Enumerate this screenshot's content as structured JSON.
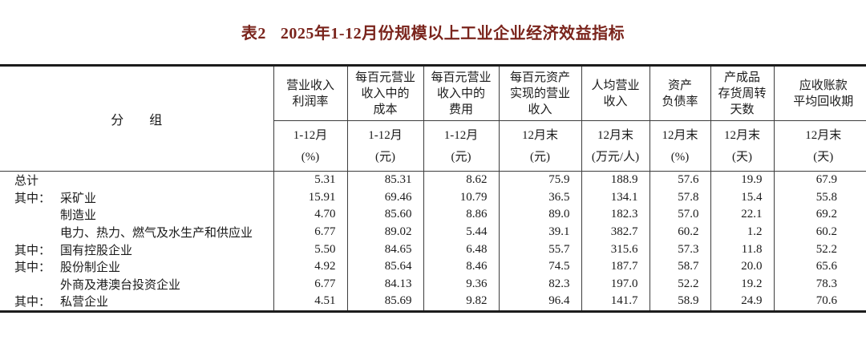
{
  "page": {
    "background": "#ffffff"
  },
  "title": {
    "prefix": "表2",
    "text": "2025年1-12月份规模以上工业企业经济效益指标",
    "color": "#7a241c"
  },
  "table": {
    "group_header": "分　　组",
    "columns": [
      {
        "title": "营业收入\n利润率",
        "period": "1-12月",
        "unit": "(%)"
      },
      {
        "title": "每百元营业\n收入中的\n成本",
        "period": "1-12月",
        "unit": "(元)"
      },
      {
        "title": "每百元营业\n收入中的\n费用",
        "period": "1-12月",
        "unit": "(元)"
      },
      {
        "title": "每百元资产\n实现的营业\n收入",
        "period": "12月末",
        "unit": "(元)"
      },
      {
        "title": "人均营业\n收入",
        "period": "12月末",
        "unit": "(万元/人)"
      },
      {
        "title": "资产\n负债率",
        "period": "12月末",
        "unit": "(%)"
      },
      {
        "title": "产成品\n存货周转\n天数",
        "period": "12月末",
        "unit": "(天)"
      },
      {
        "title": "应收账款\n平均回收期",
        "period": "12月末",
        "unit": "(天)"
      }
    ],
    "rows": [
      {
        "prefix": "",
        "indent": false,
        "label": "总计",
        "values": [
          "5.31",
          "85.31",
          "8.62",
          "75.9",
          "188.9",
          "57.6",
          "19.9",
          "67.9"
        ]
      },
      {
        "prefix": "其中：",
        "indent": false,
        "label": "采矿业",
        "values": [
          "15.91",
          "69.46",
          "10.79",
          "36.5",
          "134.1",
          "57.8",
          "15.4",
          "55.8"
        ]
      },
      {
        "prefix": "",
        "indent": true,
        "label": "制造业",
        "values": [
          "4.70",
          "85.60",
          "8.86",
          "89.0",
          "182.3",
          "57.0",
          "22.1",
          "69.2"
        ]
      },
      {
        "prefix": "",
        "indent": true,
        "label": "电力、热力、燃气及水生产和供应业",
        "values": [
          "6.77",
          "89.02",
          "5.44",
          "39.1",
          "382.7",
          "60.2",
          "1.2",
          "60.2"
        ]
      },
      {
        "prefix": "其中：",
        "indent": false,
        "label": "国有控股企业",
        "values": [
          "5.50",
          "84.65",
          "6.48",
          "55.7",
          "315.6",
          "57.3",
          "11.8",
          "52.2"
        ]
      },
      {
        "prefix": "其中：",
        "indent": false,
        "label": "股份制企业",
        "values": [
          "4.92",
          "85.64",
          "8.46",
          "74.5",
          "187.7",
          "58.7",
          "20.0",
          "65.6"
        ]
      },
      {
        "prefix": "",
        "indent": true,
        "label": "外商及港澳台投资企业",
        "values": [
          "6.77",
          "84.13",
          "9.36",
          "82.3",
          "197.0",
          "52.2",
          "19.2",
          "78.3"
        ]
      },
      {
        "prefix": "其中：",
        "indent": false,
        "label": "私营企业",
        "values": [
          "4.51",
          "85.69",
          "9.82",
          "96.4",
          "141.7",
          "58.9",
          "24.9",
          "70.6"
        ]
      }
    ]
  }
}
